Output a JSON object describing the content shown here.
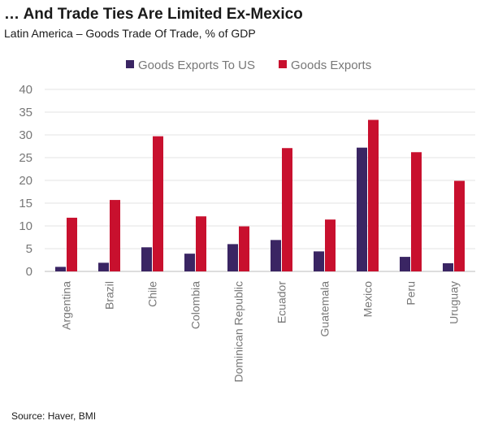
{
  "header": {
    "title": "… And Trade Ties Are Limited Ex-Mexico",
    "subtitle": "Latin America – Goods Trade Of Trade, % of GDP"
  },
  "footer": {
    "source": "Source: Haver, BMI"
  },
  "colors": {
    "series_us": "#3a2563",
    "series_total": "#c8102e",
    "grid": "#e3e3e3",
    "axis": "#bbbbbb"
  },
  "chart_data": {
    "type": "bar",
    "categories": [
      "Argentina",
      "Brazil",
      "Chile",
      "Colombia",
      "Dominican Republic",
      "Ecuador",
      "Guatemala",
      "Mexico",
      "Peru",
      "Uruguay"
    ],
    "series": [
      {
        "name": "Goods Exports To US",
        "values": [
          1.0,
          1.9,
          5.3,
          3.9,
          6.0,
          6.9,
          4.4,
          27.2,
          3.2,
          1.8
        ]
      },
      {
        "name": "Goods Exports",
        "values": [
          11.8,
          15.7,
          29.7,
          12.1,
          9.9,
          27.1,
          11.4,
          33.3,
          26.2,
          19.9
        ]
      }
    ],
    "yticks": [
      0,
      5,
      10,
      15,
      20,
      25,
      30,
      35,
      40
    ],
    "ylim": [
      0,
      40
    ],
    "grid": true,
    "legend": "top"
  }
}
